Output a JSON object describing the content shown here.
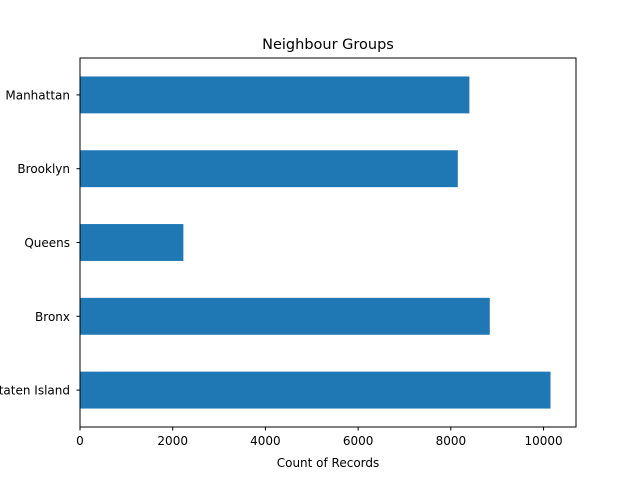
{
  "chart_data": {
    "type": "bar",
    "orientation": "horizontal",
    "title": "Neighbour Groups",
    "xlabel": "Count of Records",
    "ylabel": "",
    "categories": [
      "Manhattan",
      "Brooklyn",
      "Queens",
      "Bronx",
      "Staten Island"
    ],
    "values": [
      8400,
      8150,
      2230,
      8840,
      10150
    ],
    "xlim": [
      0,
      10700
    ],
    "xticks": [
      0,
      2000,
      4000,
      6000,
      8000,
      10000
    ],
    "xtick_labels": [
      "0",
      "2000",
      "4000",
      "6000",
      "8000",
      "10000"
    ],
    "grid": false,
    "legend": "none",
    "bar_color": "#1f77b4"
  }
}
